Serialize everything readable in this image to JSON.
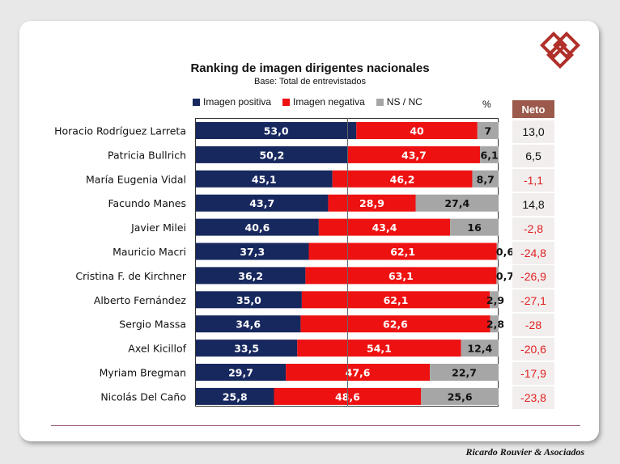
{
  "chart_data": {
    "type": "bar",
    "stacked": true,
    "orientation": "horizontal",
    "title": "Ranking de imagen dirigentes nacionales",
    "subtitle": "Base: Total de entrevistados",
    "unit_label": "%",
    "categories": [
      "Horacio Rodríguez Larreta",
      "Patricia Bullrich",
      "María Eugenia Vidal",
      "Facundo Manes",
      "Javier Milei",
      "Mauricio Macri",
      "Cristina F. de Kirchner",
      "Alberto Fernández",
      "Sergio Massa",
      "Axel Kicillof",
      "Myriam Bregman",
      "Nicolás Del Caño"
    ],
    "series": [
      {
        "name": "Imagen positiva",
        "color": "#17285e",
        "values": [
          53.0,
          50.2,
          45.1,
          43.7,
          40.6,
          37.3,
          36.2,
          35.0,
          34.6,
          33.5,
          29.7,
          25.8
        ],
        "labels": [
          "53,0",
          "50,2",
          "45,1",
          "43,7",
          "40,6",
          "37,3",
          "36,2",
          "35,0",
          "34,6",
          "33,5",
          "29,7",
          "25,8"
        ]
      },
      {
        "name": "Imagen negativa",
        "color": "#ee1111",
        "values": [
          40,
          43.7,
          46.2,
          28.9,
          43.4,
          62.1,
          63.1,
          62.1,
          62.6,
          54.1,
          47.6,
          48.6
        ],
        "labels": [
          "40",
          "43,7",
          "46,2",
          "28,9",
          "43,4",
          "62,1",
          "63,1",
          "62,1",
          "62,6",
          "54,1",
          "47,6",
          "48,6"
        ]
      },
      {
        "name": "NS / NC",
        "color": "#a6a6a6",
        "values": [
          7,
          6.1,
          8.7,
          27.4,
          16,
          0.6,
          0.7,
          2.9,
          2.8,
          12.4,
          22.7,
          25.6
        ],
        "labels": [
          "7",
          "6,1",
          "8,7",
          "27,4",
          "16",
          "0,6",
          "0,7",
          "2,9",
          "2,8",
          "12,4",
          "22,7",
          "25,6"
        ]
      }
    ],
    "xlim": [
      0,
      100
    ],
    "neto": {
      "header": "Neto",
      "labels": [
        "13,0",
        "6,5",
        "-1,1",
        "14,8",
        "-2,8",
        "-24,8",
        "-26,9",
        "-27,1",
        "-28",
        "-20,6",
        "-17,9",
        "-23,8"
      ],
      "values": [
        13.0,
        6.5,
        -1.1,
        14.8,
        -2.8,
        -24.8,
        -26.9,
        -27.1,
        -28,
        -20.6,
        -17.9,
        -23.8
      ]
    }
  },
  "footer": "Ricardo Rouvier & Asociados"
}
